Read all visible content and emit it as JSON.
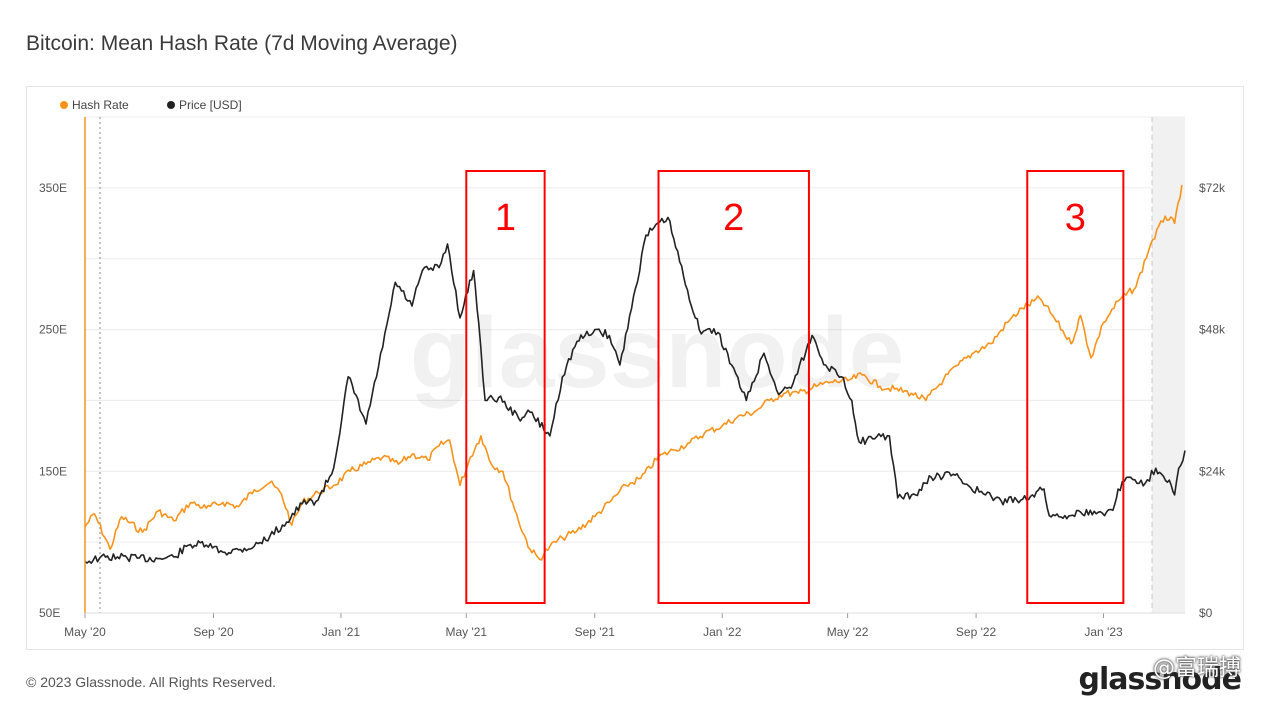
{
  "page": {
    "title": "Bitcoin: Mean Hash Rate (7d Moving Average)",
    "copyright": "© 2023 Glassnode. All Rights Reserved.",
    "logo_text": "glassnode",
    "watermark_text": "glassnode",
    "social_watermark": "@富瑞搏"
  },
  "chart_data": {
    "type": "line",
    "title": "Bitcoin: Mean Hash Rate (7d Moving Average)",
    "legend_position": "top-left",
    "grid": true,
    "x_axis": {
      "ticks": [
        "May '20",
        "Sep '20",
        "Jan '21",
        "May '21",
        "Sep '21",
        "Jan '22",
        "May '22",
        "Sep '22",
        "Jan '23"
      ],
      "range": [
        "2020-05-01",
        "2023-03-20"
      ]
    },
    "y_left": {
      "ticks": [
        "50E",
        "150E",
        "250E",
        "350E"
      ],
      "ylim": [
        50,
        400
      ],
      "unit": "EH/s"
    },
    "y_right": {
      "ticks": [
        "$0",
        "$24k",
        "$48k",
        "$72k"
      ],
      "ylim": [
        0,
        84000
      ],
      "unit": "USD"
    },
    "colors": {
      "hash_rate": "#f7931a",
      "price": "#222222",
      "highlight": "#ff0000"
    },
    "series": [
      {
        "name": "Hash Rate",
        "axis": "left",
        "points": [
          [
            "2020-05-01",
            111
          ],
          [
            "2020-05-10",
            120
          ],
          [
            "2020-05-25",
            95
          ],
          [
            "2020-06-05",
            118
          ],
          [
            "2020-06-25",
            107
          ],
          [
            "2020-07-10",
            122
          ],
          [
            "2020-07-25",
            115
          ],
          [
            "2020-08-10",
            128
          ],
          [
            "2020-08-25",
            124
          ],
          [
            "2020-09-10",
            128
          ],
          [
            "2020-09-25",
            125
          ],
          [
            "2020-10-10",
            137
          ],
          [
            "2020-10-25",
            142
          ],
          [
            "2020-11-05",
            134
          ],
          [
            "2020-11-15",
            112
          ],
          [
            "2020-11-25",
            128
          ],
          [
            "2020-12-10",
            135
          ],
          [
            "2020-12-25",
            140
          ],
          [
            "2021-01-10",
            150
          ],
          [
            "2021-01-25",
            155
          ],
          [
            "2021-02-10",
            160
          ],
          [
            "2021-02-25",
            155
          ],
          [
            "2021-03-10",
            162
          ],
          [
            "2021-03-25",
            158
          ],
          [
            "2021-04-05",
            168
          ],
          [
            "2021-04-15",
            172
          ],
          [
            "2021-04-25",
            140
          ],
          [
            "2021-05-05",
            160
          ],
          [
            "2021-05-15",
            175
          ],
          [
            "2021-05-25",
            155
          ],
          [
            "2021-06-05",
            150
          ],
          [
            "2021-06-20",
            115
          ],
          [
            "2021-07-01",
            95
          ],
          [
            "2021-07-10",
            88
          ],
          [
            "2021-07-20",
            97
          ],
          [
            "2021-08-01",
            103
          ],
          [
            "2021-08-15",
            108
          ],
          [
            "2021-09-01",
            118
          ],
          [
            "2021-09-15",
            128
          ],
          [
            "2021-10-01",
            140
          ],
          [
            "2021-10-15",
            145
          ],
          [
            "2021-11-01",
            160
          ],
          [
            "2021-11-15",
            165
          ],
          [
            "2021-12-01",
            170
          ],
          [
            "2021-12-15",
            177
          ],
          [
            "2022-01-01",
            182
          ],
          [
            "2022-01-15",
            188
          ],
          [
            "2022-02-01",
            192
          ],
          [
            "2022-02-15",
            200
          ],
          [
            "2022-03-01",
            205
          ],
          [
            "2022-03-15",
            205
          ],
          [
            "2022-04-01",
            210
          ],
          [
            "2022-04-15",
            213
          ],
          [
            "2022-05-01",
            214
          ],
          [
            "2022-05-15",
            218
          ],
          [
            "2022-06-01",
            210
          ],
          [
            "2022-06-15",
            208
          ],
          [
            "2022-07-01",
            205
          ],
          [
            "2022-07-15",
            200
          ],
          [
            "2022-08-01",
            215
          ],
          [
            "2022-08-15",
            225
          ],
          [
            "2022-09-01",
            235
          ],
          [
            "2022-09-15",
            240
          ],
          [
            "2022-10-01",
            255
          ],
          [
            "2022-10-15",
            265
          ],
          [
            "2022-11-01",
            272
          ],
          [
            "2022-11-15",
            258
          ],
          [
            "2022-12-01",
            240
          ],
          [
            "2022-12-10",
            260
          ],
          [
            "2022-12-20",
            230
          ],
          [
            "2023-01-01",
            255
          ],
          [
            "2023-01-15",
            270
          ],
          [
            "2023-02-01",
            280
          ],
          [
            "2023-02-15",
            310
          ],
          [
            "2023-03-01",
            330
          ],
          [
            "2023-03-10",
            325
          ],
          [
            "2023-03-17",
            352
          ]
        ]
      },
      {
        "name": "Price [USD]",
        "axis": "right",
        "points": [
          [
            "2020-05-01",
            8700
          ],
          [
            "2020-05-15",
            9300
          ],
          [
            "2020-06-01",
            9500
          ],
          [
            "2020-06-20",
            9300
          ],
          [
            "2020-07-10",
            9200
          ],
          [
            "2020-07-25",
            9500
          ],
          [
            "2020-08-10",
            11600
          ],
          [
            "2020-08-25",
            11500
          ],
          [
            "2020-09-10",
            10300
          ],
          [
            "2020-09-25",
            10700
          ],
          [
            "2020-10-10",
            11300
          ],
          [
            "2020-10-25",
            13000
          ],
          [
            "2020-11-10",
            15400
          ],
          [
            "2020-11-25",
            18500
          ],
          [
            "2020-12-10",
            19100
          ],
          [
            "2020-12-25",
            24500
          ],
          [
            "2021-01-08",
            40000
          ],
          [
            "2021-01-25",
            32000
          ],
          [
            "2021-02-10",
            45000
          ],
          [
            "2021-02-22",
            56000
          ],
          [
            "2021-03-10",
            52000
          ],
          [
            "2021-03-20",
            58000
          ],
          [
            "2021-04-05",
            58500
          ],
          [
            "2021-04-13",
            62500
          ],
          [
            "2021-04-25",
            50000
          ],
          [
            "2021-05-08",
            58000
          ],
          [
            "2021-05-13",
            49000
          ],
          [
            "2021-05-19",
            36000
          ],
          [
            "2021-06-01",
            36500
          ],
          [
            "2021-06-20",
            33000
          ],
          [
            "2021-07-01",
            34000
          ],
          [
            "2021-07-20",
            30000
          ],
          [
            "2021-08-01",
            40000
          ],
          [
            "2021-08-15",
            46000
          ],
          [
            "2021-09-01",
            48000
          ],
          [
            "2021-09-15",
            47000
          ],
          [
            "2021-09-25",
            42000
          ],
          [
            "2021-10-10",
            55000
          ],
          [
            "2021-10-20",
            64000
          ],
          [
            "2021-11-10",
            67000
          ],
          [
            "2021-11-25",
            57000
          ],
          [
            "2021-12-10",
            48000
          ],
          [
            "2021-12-28",
            47500
          ],
          [
            "2022-01-10",
            42000
          ],
          [
            "2022-01-24",
            36000
          ],
          [
            "2022-02-10",
            44000
          ],
          [
            "2022-02-24",
            37000
          ],
          [
            "2022-03-10",
            39000
          ],
          [
            "2022-03-28",
            47000
          ],
          [
            "2022-04-10",
            42000
          ],
          [
            "2022-04-25",
            40000
          ],
          [
            "2022-05-05",
            36000
          ],
          [
            "2022-05-12",
            29000
          ],
          [
            "2022-05-25",
            29500
          ],
          [
            "2022-06-10",
            30000
          ],
          [
            "2022-06-18",
            19500
          ],
          [
            "2022-07-05",
            20000
          ],
          [
            "2022-07-20",
            23000
          ],
          [
            "2022-08-10",
            23500
          ],
          [
            "2022-08-25",
            21500
          ],
          [
            "2022-09-10",
            20000
          ],
          [
            "2022-09-25",
            19000
          ],
          [
            "2022-10-10",
            19100
          ],
          [
            "2022-10-25",
            20000
          ],
          [
            "2022-11-05",
            21000
          ],
          [
            "2022-11-10",
            16500
          ],
          [
            "2022-11-25",
            16500
          ],
          [
            "2022-12-10",
            17100
          ],
          [
            "2022-12-25",
            16800
          ],
          [
            "2023-01-10",
            17400
          ],
          [
            "2023-01-15",
            21000
          ],
          [
            "2023-01-25",
            23000
          ],
          [
            "2023-02-10",
            22000
          ],
          [
            "2023-02-20",
            24500
          ],
          [
            "2023-03-05",
            22500
          ],
          [
            "2023-03-10",
            20000
          ],
          [
            "2023-03-14",
            24500
          ],
          [
            "2023-03-20",
            27500
          ]
        ]
      }
    ],
    "annotations": [
      {
        "label": "1",
        "from": "2021-05-01",
        "to": "2021-07-15"
      },
      {
        "label": "2",
        "from": "2021-11-01",
        "to": "2022-03-25"
      },
      {
        "label": "3",
        "from": "2022-10-20",
        "to": "2023-01-20"
      }
    ]
  }
}
